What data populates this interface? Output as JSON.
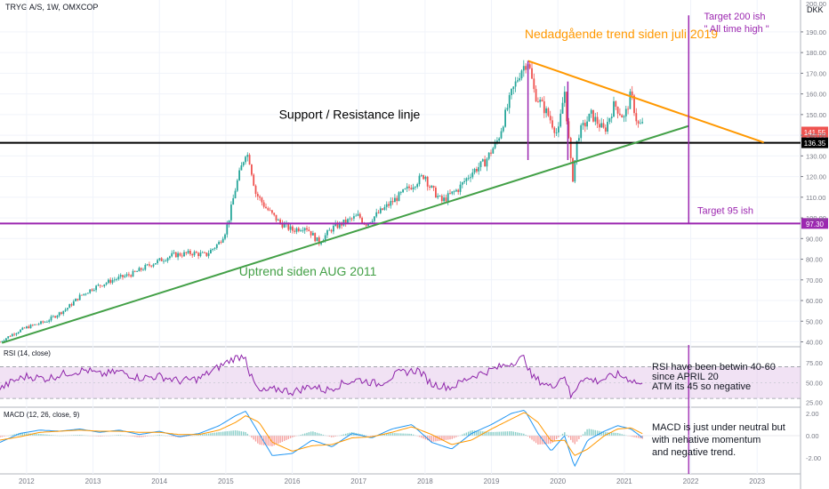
{
  "header": {
    "symbol": "TRYG A/S, 1W, OMXCOP",
    "currency": "DKK"
  },
  "colors": {
    "up": "#26a69a",
    "down": "#ef5350",
    "rsi": "#8e24aa",
    "rsi_band": "#e1bee7",
    "macd": "#2196f3",
    "signal": "#ff9800",
    "trend_up": "#43a047",
    "trend_down": "#ff9800",
    "support": "#000000",
    "target": "#9c27b0"
  },
  "chart_data": [
    {
      "type": "candlestick",
      "x_ticks": [
        "2012",
        "2013",
        "2014",
        "2015",
        "2016",
        "2017",
        "2018",
        "2019",
        "2020",
        "2021",
        "2022",
        "2023"
      ],
      "x_range": [
        2011.6,
        2023.6
      ],
      "y_ticks": [
        40,
        50,
        60,
        70,
        80,
        90,
        100,
        110,
        120,
        130,
        140,
        150,
        160,
        170,
        180,
        190
      ],
      "y_tick_labels": [
        "40.00",
        "50.00",
        "60.00",
        "70.00",
        "80.00",
        "90.00",
        "100.00",
        "110.00",
        "120.00",
        "130.00",
        "140.00",
        "150.00",
        "160.00",
        "170.00",
        "180.00",
        "190.00"
      ],
      "y_top_label": "200.00",
      "y_range": [
        38.5,
        202
      ],
      "series": [
        {
          "values": [
            [
              2011.6,
              40
            ],
            [
              2011.8,
              44
            ],
            [
              2012.0,
              47
            ],
            [
              2012.3,
              50
            ],
            [
              2012.6,
              56
            ],
            [
              2012.8,
              62
            ],
            [
              2013.0,
              66
            ],
            [
              2013.3,
              70
            ],
            [
              2013.6,
              73
            ],
            [
              2013.9,
              78
            ],
            [
              2014.2,
              82
            ],
            [
              2014.5,
              83
            ],
            [
              2014.7,
              82
            ],
            [
              2014.9,
              88
            ],
            [
              2015.0,
              94
            ],
            [
              2015.05,
              100
            ],
            [
              2015.15,
              115
            ],
            [
              2015.3,
              132
            ],
            [
              2015.35,
              129
            ],
            [
              2015.45,
              112
            ],
            [
              2015.6,
              105
            ],
            [
              2015.8,
              98
            ],
            [
              2016.0,
              94
            ],
            [
              2016.2,
              96
            ],
            [
              2016.4,
              88
            ],
            [
              2016.6,
              95
            ],
            [
              2016.8,
              98
            ],
            [
              2017.0,
              101
            ],
            [
              2017.1,
              97
            ],
            [
              2017.4,
              105
            ],
            [
              2017.7,
              113
            ],
            [
              2018.0,
              121
            ],
            [
              2018.05,
              116
            ],
            [
              2018.25,
              108
            ],
            [
              2018.5,
              114
            ],
            [
              2018.7,
              122
            ],
            [
              2018.9,
              127
            ],
            [
              2019.1,
              138
            ],
            [
              2019.3,
              160
            ],
            [
              2019.45,
              172
            ],
            [
              2019.55,
              176
            ],
            [
              2019.65,
              160
            ],
            [
              2019.85,
              150
            ],
            [
              2020.0,
              140
            ],
            [
              2020.1,
              162
            ],
            [
              2020.15,
              142
            ],
            [
              2020.22,
              118
            ],
            [
              2020.3,
              140
            ],
            [
              2020.5,
              150
            ],
            [
              2020.7,
              142
            ],
            [
              2020.85,
              155
            ],
            [
              2021.0,
              148
            ],
            [
              2021.1,
              160
            ],
            [
              2021.2,
              145
            ],
            [
              2021.3,
              145
            ]
          ]
        }
      ],
      "last_price": 141.55,
      "last_price_label": "141.55",
      "levels": [
        {
          "value": 136.35,
          "label": "136.35",
          "role": "support"
        },
        {
          "value": 97.3,
          "label": "97.30",
          "role": "target"
        }
      ],
      "trendlines": [
        {
          "name": "uptrend",
          "from": [
            2011.63,
            39.5
          ],
          "to": [
            2021.97,
            144.5
          ]
        },
        {
          "name": "downtrend",
          "from": [
            2019.55,
            176
          ],
          "to": [
            2023.1,
            136.5
          ]
        }
      ],
      "verticals": [
        {
          "name": "target-line",
          "x": 2021.97,
          "y_from": 136.35,
          "y_to": 198
        },
        {
          "name": "target-line-low",
          "x": 2021.97,
          "y_from": 97.3,
          "y_to": 136.35
        },
        {
          "name": "range-start",
          "x": 2019.55,
          "y_from": 128,
          "y_to": 176
        },
        {
          "name": "range-end",
          "x": 2020.15,
          "y_from": 128,
          "y_to": 166
        }
      ],
      "annotations": [
        {
          "text": "Nedadgående trend siden juli 2019",
          "x": 2019.5,
          "y": 187,
          "color": "#ff9800"
        },
        {
          "text": "Support / Resistance linje",
          "x": 2015.8,
          "y": 148,
          "color": "#000000"
        },
        {
          "text": "Uptrend siden AUG 2011",
          "x": 2015.2,
          "y": 72,
          "color": "#43a047"
        },
        {
          "text": "Target 200 ish",
          "x": 2022.2,
          "y": 196,
          "color": "#9c27b0"
        },
        {
          "text": "\" All time high \"",
          "x": 2022.2,
          "y": 190,
          "color": "#9c27b0"
        },
        {
          "text": "Target 95 ish",
          "x": 2022.1,
          "y": 102,
          "color": "#9c27b0"
        }
      ]
    },
    {
      "type": "line",
      "legend": "RSI (14, close)",
      "y_ticks": [
        25,
        50,
        75
      ],
      "y_tick_labels": [
        "25.00",
        "50.00",
        "75.00"
      ],
      "band": [
        30,
        70
      ],
      "y_range": [
        20,
        92
      ],
      "series": [
        {
          "values": [
            [
              2011.6,
              42
            ],
            [
              2011.8,
              52
            ],
            [
              2012.0,
              58
            ],
            [
              2012.3,
              55
            ],
            [
              2012.6,
              62
            ],
            [
              2012.9,
              66
            ],
            [
              2013.1,
              60
            ],
            [
              2013.4,
              64
            ],
            [
              2013.7,
              56
            ],
            [
              2014.0,
              58
            ],
            [
              2014.3,
              52
            ],
            [
              2014.6,
              55
            ],
            [
              2014.9,
              70
            ],
            [
              2015.1,
              80
            ],
            [
              2015.3,
              85
            ],
            [
              2015.35,
              62
            ],
            [
              2015.5,
              38
            ],
            [
              2015.8,
              42
            ],
            [
              2016.0,
              38
            ],
            [
              2016.3,
              46
            ],
            [
              2016.5,
              40
            ],
            [
              2016.8,
              50
            ],
            [
              2017.0,
              54
            ],
            [
              2017.3,
              48
            ],
            [
              2017.6,
              62
            ],
            [
              2017.9,
              66
            ],
            [
              2018.1,
              48
            ],
            [
              2018.4,
              44
            ],
            [
              2018.7,
              58
            ],
            [
              2019.0,
              66
            ],
            [
              2019.3,
              75
            ],
            [
              2019.5,
              82
            ],
            [
              2019.6,
              58
            ],
            [
              2019.9,
              44
            ],
            [
              2020.1,
              60
            ],
            [
              2020.2,
              30
            ],
            [
              2020.35,
              56
            ],
            [
              2020.6,
              52
            ],
            [
              2020.9,
              60
            ],
            [
              2021.1,
              54
            ],
            [
              2021.3,
              45
            ]
          ]
        }
      ],
      "annotations": [
        {
          "text": "RSI have been betwin 40-60"
        },
        {
          "text": "since APRIL 20"
        },
        {
          "text": "ATM its 45 so negative"
        }
      ]
    },
    {
      "type": "line",
      "legend": "MACD (12, 26, close, 9)",
      "y_ticks": [
        2,
        0,
        -2
      ],
      "y_tick_labels": [
        "2.00",
        "0.00",
        "-2.00"
      ],
      "y_range": [
        -3.2,
        2.4
      ],
      "series": [
        {
          "name": "MACD",
          "values": [
            [
              2011.6,
              -0.6
            ],
            [
              2011.9,
              0.2
            ],
            [
              2012.2,
              0.5
            ],
            [
              2012.5,
              0.4
            ],
            [
              2012.8,
              0.6
            ],
            [
              2013.1,
              0.3
            ],
            [
              2013.4,
              0.5
            ],
            [
              2013.7,
              0.1
            ],
            [
              2014.0,
              0.4
            ],
            [
              2014.3,
              -0.1
            ],
            [
              2014.6,
              0.2
            ],
            [
              2014.9,
              0.9
            ],
            [
              2015.15,
              1.8
            ],
            [
              2015.3,
              2.2
            ],
            [
              2015.5,
              0.2
            ],
            [
              2015.7,
              -1.8
            ],
            [
              2016.0,
              -1.6
            ],
            [
              2016.3,
              -0.4
            ],
            [
              2016.6,
              -1.0
            ],
            [
              2016.9,
              0.2
            ],
            [
              2017.2,
              -0.2
            ],
            [
              2017.5,
              0.6
            ],
            [
              2017.8,
              1.0
            ],
            [
              2018.1,
              -0.6
            ],
            [
              2018.4,
              -1.2
            ],
            [
              2018.7,
              0.2
            ],
            [
              2019.0,
              1.0
            ],
            [
              2019.3,
              2.0
            ],
            [
              2019.5,
              2.3
            ],
            [
              2019.7,
              0.2
            ],
            [
              2019.9,
              -1.4
            ],
            [
              2020.1,
              0.0
            ],
            [
              2020.25,
              -2.8
            ],
            [
              2020.45,
              -0.4
            ],
            [
              2020.7,
              0.4
            ],
            [
              2020.9,
              0.9
            ],
            [
              2021.1,
              0.6
            ],
            [
              2021.3,
              -0.3
            ]
          ]
        },
        {
          "name": "Signal",
          "values": [
            [
              2011.6,
              -0.4
            ],
            [
              2011.9,
              -0.1
            ],
            [
              2012.2,
              0.3
            ],
            [
              2012.5,
              0.4
            ],
            [
              2012.8,
              0.5
            ],
            [
              2013.1,
              0.4
            ],
            [
              2013.4,
              0.4
            ],
            [
              2013.7,
              0.3
            ],
            [
              2014.0,
              0.3
            ],
            [
              2014.3,
              0.1
            ],
            [
              2014.6,
              0.1
            ],
            [
              2014.9,
              0.5
            ],
            [
              2015.15,
              1.2
            ],
            [
              2015.3,
              1.8
            ],
            [
              2015.5,
              1.2
            ],
            [
              2015.7,
              -0.6
            ],
            [
              2016.0,
              -1.4
            ],
            [
              2016.3,
              -0.9
            ],
            [
              2016.6,
              -0.8
            ],
            [
              2016.9,
              -0.2
            ],
            [
              2017.2,
              -0.1
            ],
            [
              2017.5,
              0.3
            ],
            [
              2017.8,
              0.8
            ],
            [
              2018.1,
              0.1
            ],
            [
              2018.4,
              -0.8
            ],
            [
              2018.7,
              -0.4
            ],
            [
              2019.0,
              0.6
            ],
            [
              2019.3,
              1.5
            ],
            [
              2019.5,
              2.1
            ],
            [
              2019.7,
              1.2
            ],
            [
              2019.9,
              -0.5
            ],
            [
              2020.1,
              -0.4
            ],
            [
              2020.25,
              -1.8
            ],
            [
              2020.45,
              -1.2
            ],
            [
              2020.7,
              0.0
            ],
            [
              2020.9,
              0.6
            ],
            [
              2021.1,
              0.7
            ],
            [
              2021.3,
              0.1
            ]
          ]
        }
      ],
      "annotations": [
        {
          "text": "MACD is just under neutral but"
        },
        {
          "text": "with nehative momentum"
        },
        {
          "text": "and negative trend."
        }
      ]
    }
  ]
}
